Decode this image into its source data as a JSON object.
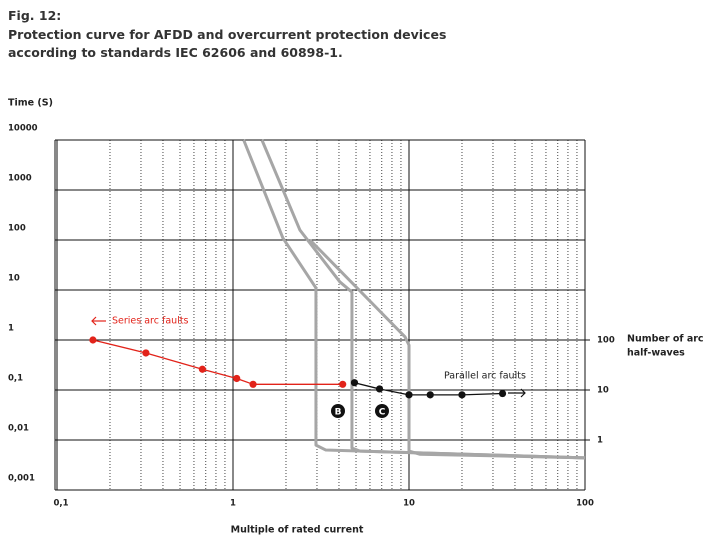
{
  "chart_data": {
    "type": "line",
    "figure_label": "Fig. 12:",
    "title": [
      "Protection curve for AFDD and overcurrent protection devices",
      "according to standards IEC 62606 and 60898-1."
    ],
    "y_label": "Time (S)",
    "x_label": "Multiple of rated current",
    "y2_label": [
      "Number of arc",
      "half-waves"
    ],
    "xscale": "log",
    "yscale": "log",
    "y2scale": "log",
    "xlim": [
      0.1,
      100
    ],
    "ylim": [
      0.001,
      10000
    ],
    "y2lim": [
      0.1,
      1000000
    ],
    "xticks": [
      {
        "value": 0.1,
        "label": "0,1"
      },
      1,
      10,
      100
    ],
    "x_minor_ticks": [
      0.2,
      0.3,
      0.4,
      0.5,
      0.6,
      0.7,
      0.8,
      0.9,
      2,
      3,
      4,
      5,
      6,
      7,
      8,
      9,
      20,
      30,
      40,
      50,
      60,
      70,
      80,
      90
    ],
    "yticks": [
      10000,
      1000,
      100,
      10,
      1,
      {
        "value": 0.1,
        "label": "0,1"
      },
      {
        "value": 0.01,
        "label": "0,01"
      },
      {
        "value": 0.001,
        "label": "0,001"
      }
    ],
    "y2ticks": [
      100,
      10,
      1
    ],
    "grid": true,
    "series": [
      {
        "name": "Series arc faults",
        "color": "#e2231a",
        "marker": true,
        "x": [
          0.16,
          0.32,
          0.67,
          1.05,
          1.3,
          4.2
        ],
        "values": [
          1.0,
          0.55,
          0.26,
          0.17,
          0.13,
          0.13
        ]
      },
      {
        "name": "Parallel arc faults",
        "color": "#111111",
        "marker": true,
        "x": [
          4.9,
          6.8,
          10,
          13.2,
          20,
          34
        ],
        "values": [
          0.14,
          0.105,
          0.08,
          0.08,
          0.08,
          0.085
        ]
      },
      {
        "color": "#a6a6a6",
        "marker": false,
        "x": [
          1.15,
          1.92,
          2.96,
          2.96,
          3.37,
          100
        ],
        "values": [
          10000,
          110,
          11,
          0.0079,
          0.0063,
          0.0044
        ]
      },
      {
        "color": "#a6a6a6",
        "marker": false,
        "x": [
          1.46,
          2.4,
          4.05,
          4.74,
          4.74,
          5.27,
          100
        ],
        "values": [
          10000,
          158,
          14.5,
          9.1,
          0.0069,
          0.006,
          0.0044
        ]
      },
      {
        "color": "#a6a6a6",
        "marker": false,
        "x": [
          2.74,
          9.5,
          10,
          10,
          11.5,
          100
        ],
        "values": [
          100,
          1.15,
          0.79,
          0.006,
          0.0052,
          0.0044
        ]
      }
    ],
    "annotations": [
      "B",
      "C"
    ]
  }
}
